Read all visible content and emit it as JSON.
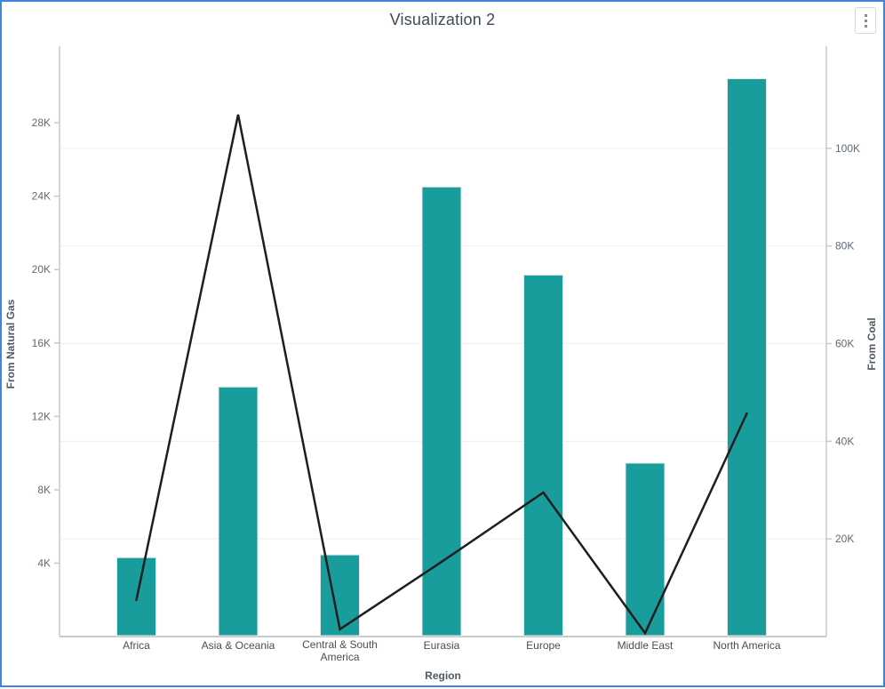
{
  "window": {
    "title": "Visualization 2",
    "border_color": "#3c86e0"
  },
  "toolbar": {
    "kebab_icon": "vertical-ellipsis"
  },
  "chart_data": {
    "type": "combo-bar-line",
    "title": "Visualization 2",
    "categories": [
      "Africa",
      "Asia & Oceania",
      "Central & South America",
      "Eurasia",
      "Europe",
      "Middle East",
      "North America"
    ],
    "series": [
      {
        "name": "From Natural Gas",
        "type": "bar",
        "axis": "left",
        "color": "#189c9c",
        "values": [
          4300,
          13600,
          4450,
          24500,
          19700,
          9450,
          30400
        ]
      },
      {
        "name": "From Coal",
        "type": "line",
        "axis": "right",
        "color": "#1e1e1e",
        "values": [
          7500,
          106900,
          1500,
          15300,
          29500,
          700,
          45700
        ]
      }
    ],
    "x_axis": {
      "title": "Region"
    },
    "left_axis": {
      "title": "From Natural Gas",
      "tick_labels": [
        "4K",
        "8K",
        "12K",
        "16K",
        "20K",
        "24K",
        "28K"
      ],
      "tick_values": [
        4000,
        8000,
        12000,
        16000,
        20000,
        24000,
        28000
      ],
      "ylim": [
        0,
        32000
      ]
    },
    "right_axis": {
      "title": "From Coal",
      "tick_labels": [
        "20K",
        "40K",
        "60K",
        "80K",
        "100K"
      ],
      "tick_values": [
        20000,
        40000,
        60000,
        80000,
        100000
      ],
      "ylim": [
        0,
        120000
      ]
    },
    "grid": "horizontal, right-axis ticks only",
    "legend": "none",
    "colors": {
      "bar": "#189c9c",
      "line": "#1e1e1e",
      "axis_line": "#c9c9c9",
      "grid_line": "#efefef",
      "tick_text": "#5d6a77",
      "category_text": "#4d4d4d",
      "axis_title_text": "#4e5a63",
      "title_text": "#3e4a57"
    }
  }
}
